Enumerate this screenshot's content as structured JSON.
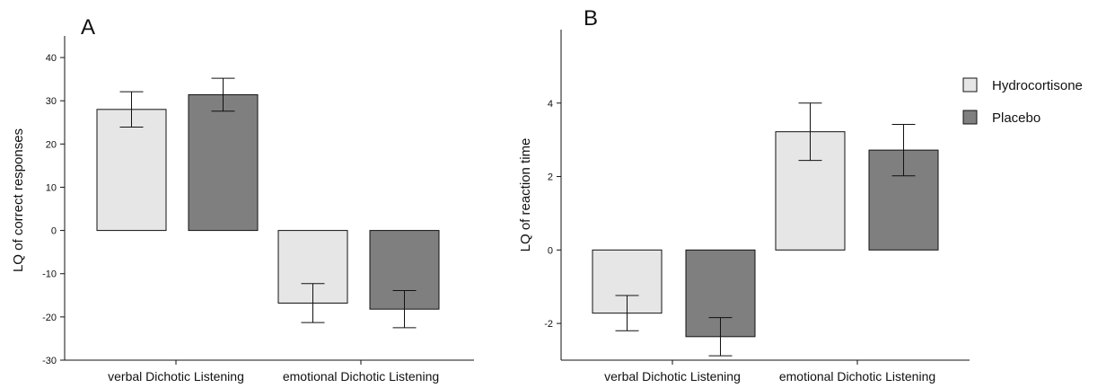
{
  "legend": [
    {
      "name": "Hydrocortisone",
      "color": "#e6e6e6"
    },
    {
      "name": "Placebo",
      "color": "#7f7f7f"
    }
  ],
  "chart_data": [
    {
      "type": "bar",
      "panel": "A",
      "ylabel": "LQ of correct responses",
      "ylim": [
        -30,
        45
      ],
      "yticks": [
        -30,
        -20,
        -10,
        0,
        10,
        20,
        30,
        40
      ],
      "categories": [
        "verbal Dichotic Listening",
        "emotional Dichotic Listening"
      ],
      "series": [
        {
          "name": "Hydrocortisone",
          "values": [
            28.0,
            -16.8
          ],
          "errors": [
            4.1,
            4.5
          ]
        },
        {
          "name": "Placebo",
          "values": [
            31.4,
            -18.2
          ],
          "errors": [
            3.8,
            4.3
          ]
        }
      ]
    },
    {
      "type": "bar",
      "panel": "B",
      "ylabel": "LQ of reaction time",
      "ylim": [
        -3,
        6
      ],
      "yticks": [
        -2,
        0,
        2,
        4
      ],
      "categories": [
        "verbal Dichotic Listening",
        "emotional Dichotic Listening"
      ],
      "series": [
        {
          "name": "Hydrocortisone",
          "values": [
            -1.72,
            3.22
          ],
          "errors": [
            0.48,
            0.78
          ]
        },
        {
          "name": "Placebo",
          "values": [
            -2.36,
            2.72
          ],
          "errors": [
            0.52,
            0.7
          ]
        }
      ]
    }
  ]
}
